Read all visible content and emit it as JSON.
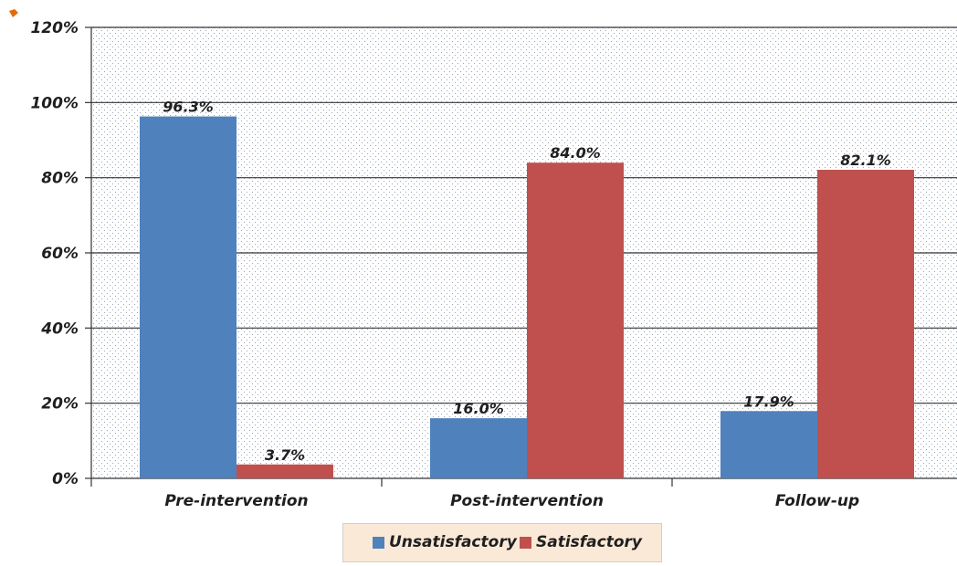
{
  "chart_data": {
    "type": "bar",
    "categories": [
      "Pre-intervention",
      "Post-intervention",
      "Follow-up"
    ],
    "series": [
      {
        "name": "Unsatisfactory",
        "values": [
          96.3,
          16.0,
          17.9
        ],
        "labels": [
          "96.3%",
          "16.0%",
          "17.9%"
        ],
        "color": "#4f81bd"
      },
      {
        "name": "Satisfactory",
        "values": [
          3.7,
          84.0,
          82.1
        ],
        "labels": [
          "3.7%",
          "84.0%",
          "82.1%"
        ],
        "color": "#c0504d"
      }
    ],
    "ylim": [
      0,
      120
    ],
    "yticks": [
      0,
      20,
      40,
      60,
      80,
      100,
      120
    ],
    "ytick_labels": [
      "0%",
      "20%",
      "40%",
      "60%",
      "80%",
      "100%",
      "120%"
    ],
    "grid": true,
    "legend": "bottom-center",
    "title": "",
    "xlabel": "",
    "ylabel": "",
    "colors": {
      "plot_background_dots": "#9aa6b8",
      "gridline": "#333333",
      "legend_background": "#fbe9d7",
      "corner_marker": "#e36c09"
    }
  },
  "legend": {
    "unsatisfactory_label": "Unsatisfactory",
    "satisfactory_label": "Satisfactory"
  }
}
